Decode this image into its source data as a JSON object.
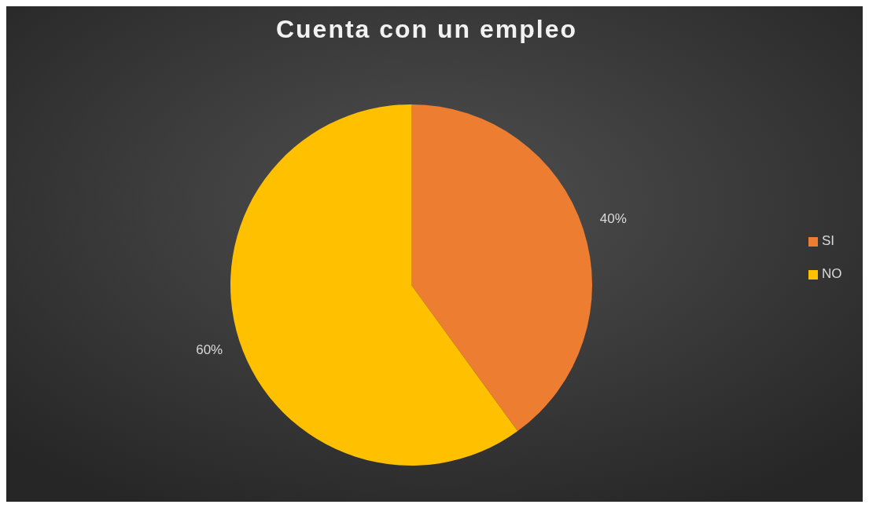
{
  "chart_data": {
    "type": "pie",
    "title": "Cuenta con un empleo",
    "categories": [
      "SI",
      "NO"
    ],
    "values": [
      40,
      60
    ],
    "colors": [
      "#ed7d31",
      "#ffc000"
    ],
    "value_labels": [
      "40%",
      "60%"
    ],
    "legend": "right"
  }
}
